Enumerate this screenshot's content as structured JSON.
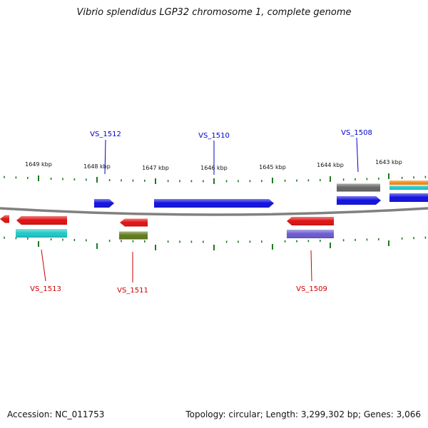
{
  "title": "Vibrio splendidus LGP32 chromosome 1, complete genome",
  "footer": {
    "accession": "Accession: NC_011753",
    "summary": "Topology: circular; Length: 3,299,302 bp; Genes: 3,066"
  },
  "colors": {
    "backbone": "#808080",
    "tick": "#1f7a1f",
    "forward_gene": "#1010e0",
    "reverse_gene": "#e01010",
    "forward_label": "#0000cc",
    "reverse_label": "#cc0000"
  },
  "scale": {
    "unit": "kbp",
    "ticks": [
      {
        "label": "1649 kbp"
      },
      {
        "label": "1648 kbp"
      },
      {
        "label": "1647 kbp"
      },
      {
        "label": "1646 kbp"
      },
      {
        "label": "1645 kbp"
      },
      {
        "label": "1644 kbp"
      },
      {
        "label": "1643 kbp"
      }
    ]
  },
  "gene_labels": [
    {
      "name": "VS_1512",
      "strand": "forward"
    },
    {
      "name": "VS_1510",
      "strand": "forward"
    },
    {
      "name": "VS_1508",
      "strand": "forward"
    },
    {
      "name": "VS_1513",
      "strand": "reverse"
    },
    {
      "name": "VS_1511",
      "strand": "reverse"
    },
    {
      "name": "VS_1509",
      "strand": "reverse"
    }
  ],
  "features": [
    {
      "kind": "reverse-gene",
      "color": "#e01010"
    },
    {
      "kind": "reverse-gene",
      "color": "#e01010"
    },
    {
      "kind": "reverse-cds",
      "color": "#1fc8c8"
    },
    {
      "kind": "forward-gene",
      "color": "#1010e0"
    },
    {
      "kind": "forward-gene",
      "color": "#1010e0"
    },
    {
      "kind": "reverse-gene",
      "color": "#e01010"
    },
    {
      "kind": "reverse-cds",
      "color": "#5e7a1a"
    },
    {
      "kind": "reverse-gene",
      "color": "#e01010"
    },
    {
      "kind": "reverse-cds",
      "color": "#6a5ad0"
    },
    {
      "kind": "forward-other",
      "color": "#666666"
    },
    {
      "kind": "forward-gene",
      "color": "#1010e0"
    },
    {
      "kind": "forward-other",
      "color": "#f08c1e"
    },
    {
      "kind": "forward-cds",
      "color": "#1fc8c8"
    },
    {
      "kind": "forward-gene",
      "color": "#1010e0"
    }
  ]
}
